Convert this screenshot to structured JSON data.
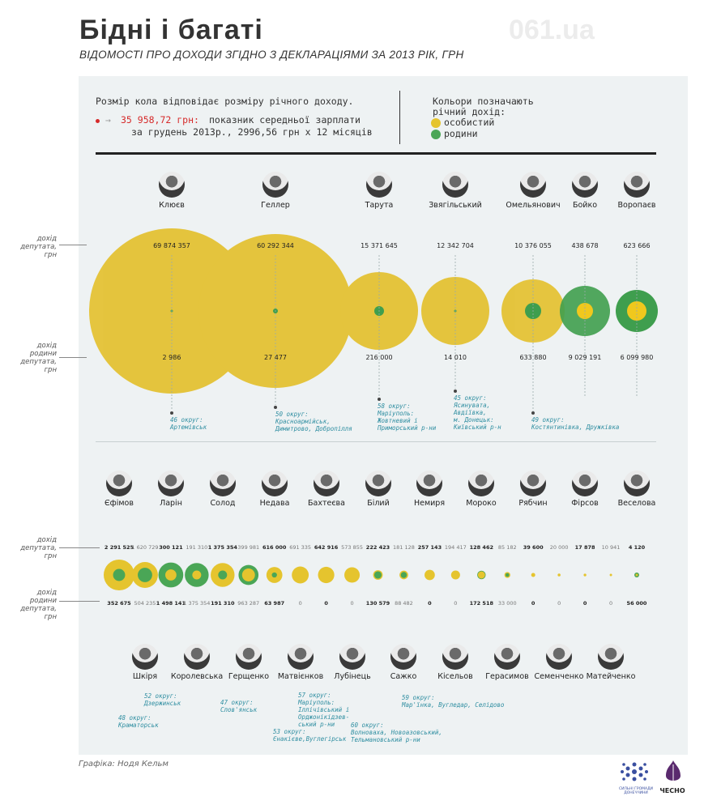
{
  "header": {
    "title": "Бідні і багаті",
    "subtitle": "ВІДОМОСТІ ПРО ДОХОДИ ЗГІДНО З ДЕКЛАРАЦІЯМИ ЗА 2013 РІК, ГРН",
    "watermark": "061.ua"
  },
  "legend": {
    "size_note": "Розмір кола відповідає розміру річного доходу.",
    "ref_value": "35 958,72 грн:",
    "ref_text_1": "показник середньої зарплати",
    "ref_text_2": "за грудень 2013р., 2996,56 грн х 12 місяців",
    "colors_title_1": "Кольори позначають",
    "colors_title_2": "річний дохід:",
    "personal_label": "особистий",
    "family_label": "родини",
    "personal_color": "#e5c42e",
    "family_color": "#4aa656"
  },
  "side_labels": {
    "deputy_income": "дохід депутата, грн",
    "family_income": "дохід родини депутата, грн"
  },
  "top_row": [
    {
      "name": "Клюєв",
      "personal": "69 874 357",
      "family": "2 986"
    },
    {
      "name": "Геллер",
      "personal": "60 292 344",
      "family": "27 477"
    },
    {
      "name": "Тарута",
      "personal": "15 371 645",
      "family": "216 000"
    },
    {
      "name": "Звягільський",
      "personal": "12 342 704",
      "family": "14 010"
    },
    {
      "name": "Омельянович",
      "personal": "10 376 055",
      "family": "633 880"
    },
    {
      "name": "Бойко",
      "personal": "438 678",
      "family": "9 029 191"
    },
    {
      "name": "Воропаєв",
      "personal": "623 666",
      "family": "6 099 980"
    }
  ],
  "top_notes": [
    {
      "line1": "46 округ:",
      "line2": "Артемівськ"
    },
    {
      "line1": "50 округ:",
      "line2": "Красноармійськ,",
      "line3": "Димитрово, Добропілля"
    },
    {
      "line1": "58 округ:",
      "line2": "Маріуполь:",
      "line3": "Жовтневий і",
      "line4": "Приморський р-ни"
    },
    {
      "line1": "45 округ:",
      "line2": "Ясинувата,",
      "line3": "Авдіївка,",
      "line4": "м. Донецьк:",
      "line5": "Київський р-н"
    },
    {
      "line1": "49 округ:",
      "line2": "Костянтинівка, Дружківка"
    }
  ],
  "bottom_top_names": [
    "Єфімов",
    "Ларін",
    "Солод",
    "Недава",
    "Бахтеєва",
    "Білий",
    "Немиря",
    "Мороко",
    "Рябчин",
    "Фірсов",
    "Веселова"
  ],
  "bottom_row": [
    {
      "personal": "2 291 525",
      "family": "352 675"
    },
    {
      "personal": "1 620 729",
      "family": "504 235"
    },
    {
      "personal": "300 121",
      "family": "1 498 141"
    },
    {
      "personal": "191 310",
      "family": "1 375 354"
    },
    {
      "personal": "1 375 354",
      "family": "191 310"
    },
    {
      "personal": "399 981",
      "family": "963 287"
    },
    {
      "personal": "616 000",
      "family": "63 987"
    },
    {
      "personal": "691 335",
      "family": "0"
    },
    {
      "personal": "642 916",
      "family": "0"
    },
    {
      "personal": "573 855",
      "family": "0"
    },
    {
      "personal": "222 423",
      "family": "130 579"
    },
    {
      "personal": "181 128",
      "family": "88 482"
    },
    {
      "personal": "257 143",
      "family": "0"
    },
    {
      "personal": "194 417",
      "family": "0"
    },
    {
      "personal": "128 462",
      "family": "172 518"
    },
    {
      "personal": "85 182",
      "family": "33 000"
    },
    {
      "personal": "39 600",
      "family": "0"
    },
    {
      "personal": "20 000",
      "family": "0"
    },
    {
      "personal": "17 878",
      "family": "0"
    },
    {
      "personal": "10 941",
      "family": "0"
    },
    {
      "personal": "4 120",
      "family": "56 000"
    }
  ],
  "bottom_lower_names": [
    "Шкіря",
    "Королевська",
    "Герщенко",
    "Матвієнков",
    "Лубінець",
    "Сажко",
    "Кісельов",
    "Герасимов",
    "Семенченко",
    "Матейченко"
  ],
  "bottom_notes": [
    {
      "line1": "48 округ:",
      "line2": "Краматорськ"
    },
    {
      "line1": "52 округ:",
      "line2": "Дзержинськ"
    },
    {
      "line1": "47 округ:",
      "line2": "Слов'янськ"
    },
    {
      "line1": "53 округ:",
      "line2": "Єнакієве,Вуглегірськ"
    },
    {
      "line1": "57 округ:",
      "line2": "Маріуполь:",
      "line3": "Іллічівський і",
      "line4": "Орджонікідзев-",
      "line5": "ський р-ни"
    },
    {
      "line1": "60 округ:",
      "line2": "Волноваха, Новоазовський,",
      "line3": "Тельмановський р-ни"
    },
    {
      "line1": "59 округ:",
      "line2": "Мар'їнка, Вугледар, Селідово"
    }
  ],
  "credit": "Графіка: Нодя Кельм",
  "logos": {
    "left": "СИЛЬНІ ГРОМАДИ ДОНЕЧЧИНИ",
    "right": "ЧЕСНО"
  }
}
